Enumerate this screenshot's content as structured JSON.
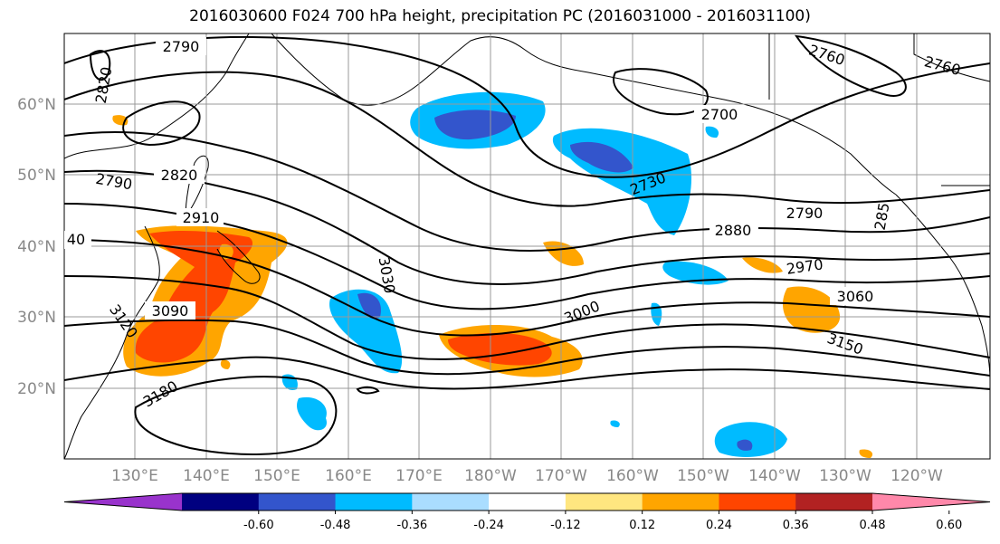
{
  "title": "2016030600 F024 700 hPa height, precipitation PC (2016031000 - 2016031100)",
  "map": {
    "lat_labels": [
      "60°N",
      "50°N",
      "40°N",
      "30°N",
      "20°N"
    ],
    "lon_labels": [
      "130°E",
      "140°E",
      "150°E",
      "160°E",
      "170°E",
      "180°W",
      "170°W",
      "160°W",
      "150°W",
      "140°W",
      "130°W",
      "120°W"
    ],
    "contour_labels": [
      "2790",
      "2820",
      "2760",
      "2760",
      "2700",
      "2790",
      "2820",
      "2910",
      "40",
      "2730",
      "2790",
      "2880",
      "2970",
      "3060",
      "3030",
      "3090",
      "3120",
      "3000",
      "3150",
      "3180",
      "285"
    ]
  },
  "colorbar": {
    "colors": [
      "#9933cc",
      "#000080",
      "#3355cc",
      "#00bbff",
      "#aaddff",
      "#ffffff",
      "#ffe680",
      "#ffa500",
      "#ff4500",
      "#b22222",
      "#ff88aa"
    ],
    "tick_labels": [
      "-0.60",
      "-0.48",
      "-0.36",
      "-0.24",
      "-0.12",
      "0.12",
      "0.24",
      "0.36",
      "0.48",
      "0.60"
    ]
  }
}
